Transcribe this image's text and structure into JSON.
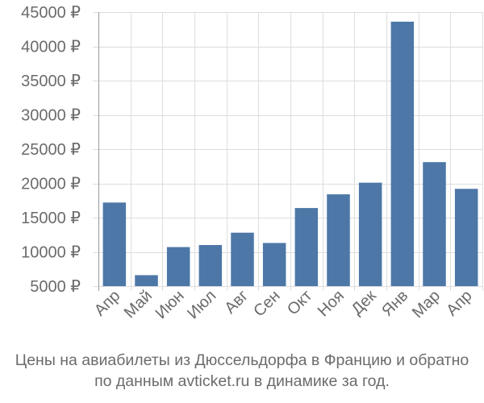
{
  "chart_data": {
    "type": "bar",
    "categories": [
      "Апр",
      "Май",
      "Июн",
      "Июл",
      "Авг",
      "Сен",
      "Окт",
      "Ноя",
      "Дек",
      "Янв",
      "Мар",
      "Апр"
    ],
    "values": [
      17200,
      6600,
      10700,
      11000,
      12800,
      11300,
      16400,
      18400,
      20100,
      43600,
      23100,
      19200
    ],
    "y_ticks": [
      5000,
      10000,
      15000,
      20000,
      25000,
      30000,
      35000,
      40000,
      45000
    ],
    "y_tick_labels": [
      "5000 ₽",
      "10000 ₽",
      "15000 ₽",
      "20000 ₽",
      "25000 ₽",
      "30000 ₽",
      "35000 ₽",
      "40000 ₽",
      "45000 ₽"
    ],
    "ylim": [
      5000,
      45000
    ],
    "grid": true,
    "bar_color": "#4d77a7",
    "grid_color": "#dddddd",
    "title": "",
    "xlabel": "",
    "ylabel": ""
  },
  "caption": {
    "line1": "Цены на авиабилеты из Дюссельдорфа в Францию и обратно",
    "line2": "по данным avticket.ru в динамике за год."
  }
}
